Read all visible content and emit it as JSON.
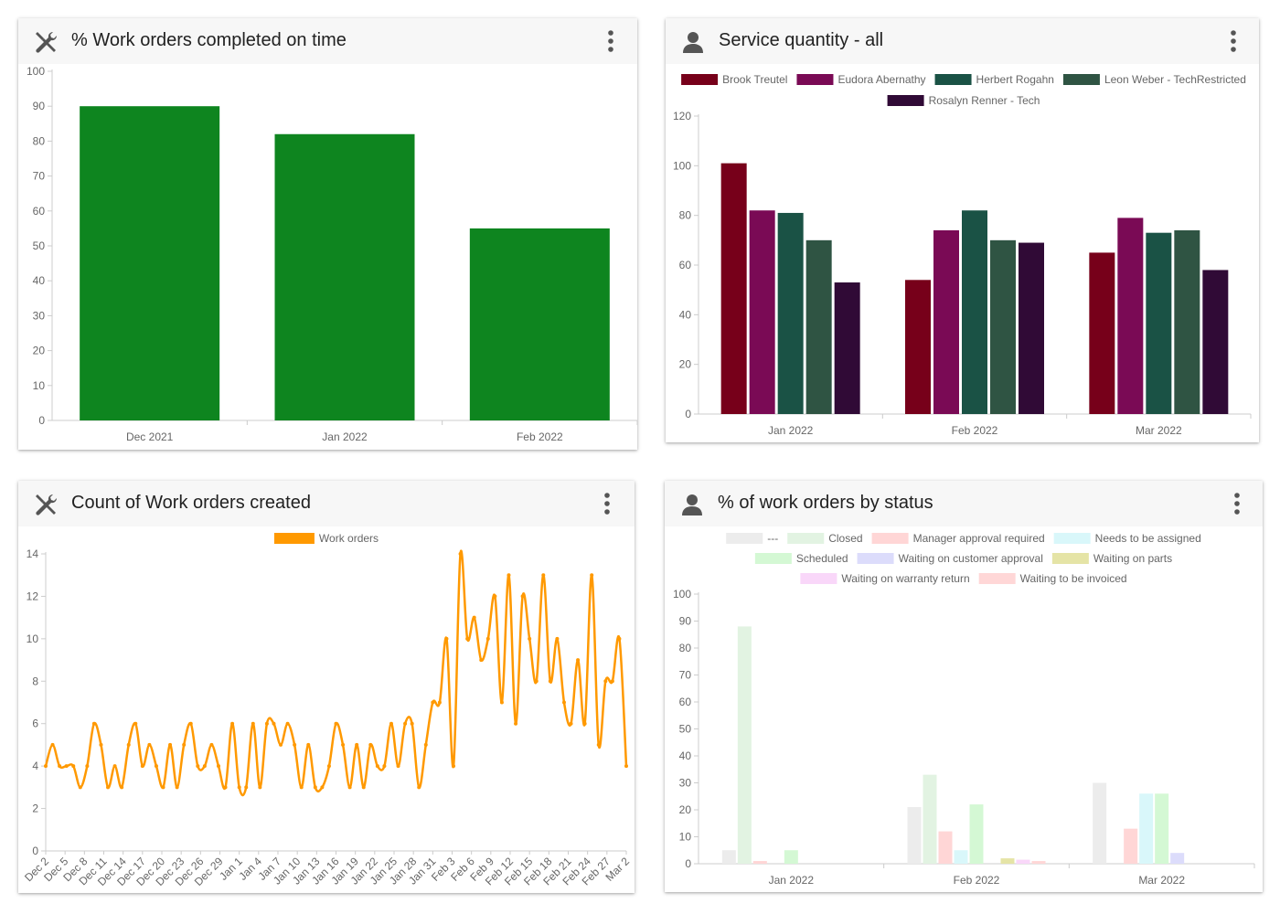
{
  "cards": [
    {
      "title": "% Work orders completed on time",
      "icon": "tools-icon",
      "chart_data": {
        "type": "bar",
        "title": "% Work orders completed on time",
        "categories": [
          "Dec 2021",
          "Jan 2022",
          "Feb 2022"
        ],
        "values": [
          90,
          82,
          55
        ],
        "ylim": [
          0,
          100
        ],
        "yticks": [
          0,
          10,
          20,
          30,
          40,
          50,
          60,
          70,
          80,
          90,
          100
        ],
        "color": "#0e851f",
        "grid": false
      }
    },
    {
      "title": "Service quantity - all",
      "icon": "person-icon",
      "chart_data": {
        "type": "bar",
        "title": "Service quantity - all",
        "categories": [
          "Jan 2022",
          "Feb 2022",
          "Mar 2022"
        ],
        "ylim": [
          0,
          120
        ],
        "yticks": [
          0,
          20,
          40,
          60,
          80,
          100,
          120
        ],
        "legend": "top",
        "series": [
          {
            "name": "Brook Treutel",
            "color": "#77001a",
            "values": [
              101,
              54,
              65
            ]
          },
          {
            "name": "Eudora Abernathy",
            "color": "#7a0a55",
            "values": [
              82,
              74,
              79
            ]
          },
          {
            "name": "Herbert Rogahn",
            "color": "#1a5245",
            "values": [
              81,
              82,
              73
            ]
          },
          {
            "name": "Leon Weber - TechRestricted",
            "color": "#2f5443",
            "values": [
              70,
              70,
              74
            ]
          },
          {
            "name": "Rosalyn Renner - Tech",
            "color": "#300a36",
            "values": [
              53,
              69,
              58
            ]
          }
        ]
      }
    },
    {
      "title": "Count of Work orders created",
      "icon": "tools-icon",
      "chart_data": {
        "type": "line",
        "title": "Count of Work orders created",
        "legend": "top",
        "ylim": [
          0,
          14
        ],
        "yticks": [
          0,
          2,
          4,
          6,
          8,
          10,
          12,
          14
        ],
        "x_tick_labels": [
          "Dec 2",
          "Dec 5",
          "Dec 8",
          "Dec 11",
          "Dec 14",
          "Dec 17",
          "Dec 20",
          "Dec 23",
          "Dec 26",
          "Dec 29",
          "Jan 1",
          "Jan 4",
          "Jan 7",
          "Jan 10",
          "Jan 13",
          "Jan 16",
          "Jan 19",
          "Jan 22",
          "Jan 25",
          "Jan 28",
          "Jan 31",
          "Feb 3",
          "Feb 6",
          "Feb 9",
          "Feb 12",
          "Feb 15",
          "Feb 18",
          "Feb 21",
          "Feb 24",
          "Feb 27",
          "Mar 2"
        ],
        "series": [
          {
            "name": "Work orders",
            "color": "#ff9900",
            "values": [
              4,
              5,
              4,
              4,
              4,
              3,
              4,
              6,
              5,
              3,
              4,
              3,
              5,
              6,
              4,
              5,
              4,
              3,
              5,
              3,
              5,
              6,
              4,
              4,
              5,
              4,
              3,
              6,
              3,
              3,
              6,
              3,
              6,
              6,
              5,
              6,
              5,
              3,
              5,
              3,
              3,
              4,
              6,
              5,
              3,
              5,
              3,
              5,
              4,
              4,
              6,
              4,
              6,
              6,
              3,
              5,
              7,
              7,
              10,
              4,
              14,
              10,
              11,
              9,
              10,
              12,
              7,
              13,
              6,
              12,
              10,
              8,
              13,
              8,
              10,
              7,
              6,
              9,
              6,
              13,
              5,
              8,
              8,
              10,
              4
            ]
          }
        ]
      }
    },
    {
      "title": "% of work orders by status",
      "icon": "person-icon",
      "chart_data": {
        "type": "bar",
        "title": "% of work orders by status",
        "categories": [
          "Jan 2022",
          "Feb 2022",
          "Mar 2022"
        ],
        "ylim": [
          0,
          100
        ],
        "yticks": [
          0,
          10,
          20,
          30,
          40,
          50,
          60,
          70,
          80,
          90,
          100
        ],
        "legend": "top",
        "series": [
          {
            "name": "---",
            "color": "#ececec",
            "values": [
              5,
              21,
              30
            ]
          },
          {
            "name": "Closed",
            "color": "#e2f3e2",
            "values": [
              88,
              33,
              0
            ]
          },
          {
            "name": "Manager approval required",
            "color": "#ffd6d6",
            "values": [
              1,
              12,
              13
            ]
          },
          {
            "name": "Needs to be assigned",
            "color": "#d9f7fa",
            "values": [
              0,
              5,
              26
            ]
          },
          {
            "name": "Scheduled",
            "color": "#d4f8d4",
            "values": [
              5,
              22,
              26
            ]
          },
          {
            "name": "Waiting on customer approval",
            "color": "#dcdcfb",
            "values": [
              0,
              0,
              4
            ]
          },
          {
            "name": "Waiting on parts",
            "color": "#e5e4a6",
            "values": [
              0,
              2,
              0
            ]
          },
          {
            "name": "Waiting on warranty return",
            "color": "#f9d7f9",
            "values": [
              0,
              1.5,
              0
            ]
          },
          {
            "name": "Waiting to be invoiced",
            "color": "#ffd7d7",
            "values": [
              0,
              1,
              0
            ]
          }
        ]
      }
    }
  ]
}
